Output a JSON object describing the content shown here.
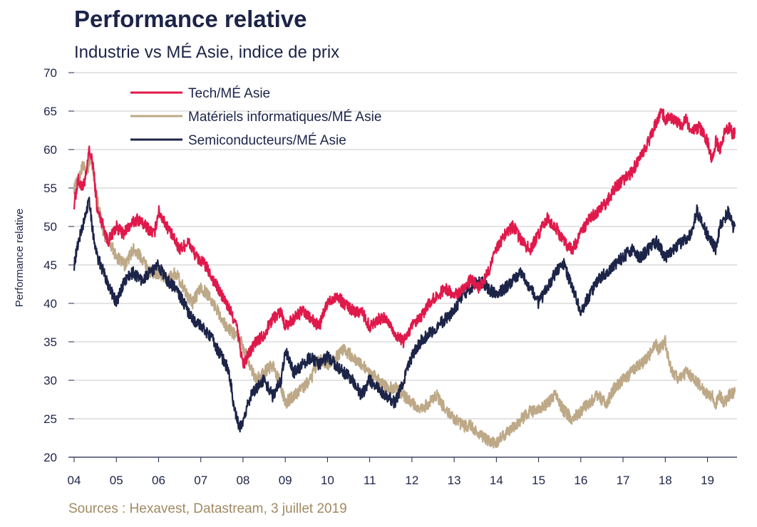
{
  "chart_data": {
    "type": "line",
    "title": "Performance relative",
    "subtitle": "Industrie vs MÉ Asie, indice de prix",
    "ylabel": "Performance relative",
    "xlabel": "",
    "source": "Sources : Hexavest, Datastream, 3 juillet 2019",
    "ylim": [
      20,
      70
    ],
    "yticks": [
      20,
      25,
      30,
      35,
      40,
      45,
      50,
      55,
      60,
      65,
      70
    ],
    "xlim": [
      2004.0,
      2019.7
    ],
    "xticks": [
      {
        "value": 2004,
        "label": "04"
      },
      {
        "value": 2005,
        "label": "05"
      },
      {
        "value": 2006,
        "label": "06"
      },
      {
        "value": 2007,
        "label": "07"
      },
      {
        "value": 2008,
        "label": "08"
      },
      {
        "value": 2009,
        "label": "09"
      },
      {
        "value": 2010,
        "label": "10"
      },
      {
        "value": 2011,
        "label": "11"
      },
      {
        "value": 2012,
        "label": "12"
      },
      {
        "value": 2013,
        "label": "13"
      },
      {
        "value": 2014,
        "label": "14"
      },
      {
        "value": 2015,
        "label": "15"
      },
      {
        "value": 2016,
        "label": "16"
      },
      {
        "value": 2017,
        "label": "17"
      },
      {
        "value": 2018,
        "label": "18"
      },
      {
        "value": 2019,
        "label": "19"
      }
    ],
    "grid": "horizontal",
    "legend_position": "top-left",
    "series": [
      {
        "name": "Tech/MÉ Asie",
        "color": "#e0194b",
        "x": [
          2004.0,
          2004.1,
          2004.2,
          2004.3,
          2004.35,
          2004.45,
          2004.55,
          2004.7,
          2004.8,
          2004.9,
          2005.0,
          2005.15,
          2005.3,
          2005.5,
          2005.7,
          2005.9,
          2006.0,
          2006.1,
          2006.3,
          2006.5,
          2006.7,
          2006.9,
          2007.1,
          2007.3,
          2007.5,
          2007.7,
          2007.85,
          2008.0,
          2008.1,
          2008.3,
          2008.5,
          2008.7,
          2008.9,
          2009.0,
          2009.2,
          2009.4,
          2009.6,
          2009.8,
          2010.0,
          2010.2,
          2010.4,
          2010.6,
          2010.8,
          2011.0,
          2011.2,
          2011.4,
          2011.6,
          2011.8,
          2012.0,
          2012.2,
          2012.4,
          2012.6,
          2012.8,
          2013.0,
          2013.2,
          2013.4,
          2013.6,
          2013.8,
          2014.0,
          2014.2,
          2014.4,
          2014.6,
          2014.8,
          2015.0,
          2015.2,
          2015.4,
          2015.6,
          2015.8,
          2016.0,
          2016.2,
          2016.4,
          2016.6,
          2016.8,
          2017.0,
          2017.2,
          2017.4,
          2017.6,
          2017.75,
          2017.9,
          2018.0,
          2018.2,
          2018.4,
          2018.5,
          2018.6,
          2018.8,
          2019.0,
          2019.1,
          2019.2,
          2019.3,
          2019.4,
          2019.5,
          2019.6,
          2019.65
        ],
        "y": [
          53,
          56,
          55,
          57,
          60,
          58,
          52,
          50,
          48,
          49,
          50,
          49,
          50,
          51,
          50,
          49,
          52,
          51,
          49,
          47,
          48,
          46,
          45,
          43,
          41,
          39,
          37,
          32,
          33,
          35,
          36,
          38,
          39,
          37,
          38,
          39,
          38,
          37,
          40,
          41,
          40,
          39,
          39,
          37,
          38,
          38,
          36,
          35,
          37,
          38,
          40,
          41,
          42,
          41,
          42,
          43,
          42,
          44,
          47,
          49,
          50,
          48,
          47,
          49,
          51,
          50,
          48,
          47,
          49,
          51,
          52,
          53,
          55,
          56,
          57,
          59,
          61,
          63,
          65,
          64,
          64,
          63,
          64,
          62,
          63,
          61,
          59,
          61,
          60,
          62,
          63,
          62,
          62
        ]
      },
      {
        "name": "Matériels informatiques/MÉ Asie",
        "color": "#bda988",
        "x": [
          2004.0,
          2004.1,
          2004.2,
          2004.3,
          2004.4,
          2004.5,
          2004.6,
          2004.7,
          2004.85,
          2005.0,
          2005.2,
          2005.4,
          2005.6,
          2005.8,
          2006.0,
          2006.2,
          2006.4,
          2006.6,
          2006.8,
          2007.0,
          2007.2,
          2007.4,
          2007.6,
          2007.8,
          2007.95,
          2008.1,
          2008.3,
          2008.5,
          2008.7,
          2008.85,
          2009.0,
          2009.2,
          2009.4,
          2009.6,
          2009.8,
          2010.0,
          2010.2,
          2010.4,
          2010.6,
          2010.8,
          2011.0,
          2011.2,
          2011.4,
          2011.6,
          2011.8,
          2012.0,
          2012.2,
          2012.4,
          2012.6,
          2012.8,
          2013.0,
          2013.2,
          2013.4,
          2013.6,
          2013.8,
          2014.0,
          2014.2,
          2014.4,
          2014.6,
          2014.8,
          2015.0,
          2015.2,
          2015.4,
          2015.6,
          2015.8,
          2016.0,
          2016.2,
          2016.4,
          2016.6,
          2016.8,
          2017.0,
          2017.2,
          2017.4,
          2017.6,
          2017.75,
          2017.85,
          2018.0,
          2018.1,
          2018.3,
          2018.5,
          2018.7,
          2018.9,
          2019.0,
          2019.1,
          2019.2,
          2019.3,
          2019.4,
          2019.5,
          2019.65
        ],
        "y": [
          55,
          56,
          58,
          57,
          59,
          55,
          52,
          49,
          48,
          46,
          45,
          47,
          46,
          44,
          44,
          43,
          44,
          42,
          40,
          42,
          41,
          39,
          37,
          36,
          35,
          33,
          30,
          31,
          32,
          30,
          27,
          28,
          29,
          30,
          33,
          32,
          33,
          34,
          33,
          32,
          31,
          30,
          29,
          29,
          28,
          27,
          26,
          27,
          28,
          26,
          25,
          24,
          24,
          23,
          22,
          22,
          23,
          24,
          25,
          26,
          26,
          27,
          28,
          26,
          25,
          26,
          27,
          28,
          27,
          29,
          30,
          31,
          32,
          33,
          35,
          34,
          35,
          32,
          30,
          31,
          30,
          29,
          28,
          28,
          27,
          28,
          27,
          28,
          28.5
        ]
      },
      {
        "name": "Semiconducteurs/MÉ Asie",
        "color": "#1c2448",
        "x": [
          2004.0,
          2004.1,
          2004.2,
          2004.3,
          2004.35,
          2004.45,
          2004.55,
          2004.7,
          2004.85,
          2005.0,
          2005.2,
          2005.4,
          2005.6,
          2005.8,
          2006.0,
          2006.2,
          2006.4,
          2006.6,
          2006.8,
          2007.0,
          2007.2,
          2007.4,
          2007.6,
          2007.7,
          2007.8,
          2007.9,
          2008.0,
          2008.1,
          2008.3,
          2008.5,
          2008.7,
          2008.9,
          2009.0,
          2009.2,
          2009.4,
          2009.6,
          2009.8,
          2010.0,
          2010.2,
          2010.4,
          2010.6,
          2010.8,
          2011.0,
          2011.2,
          2011.4,
          2011.6,
          2011.8,
          2012.0,
          2012.2,
          2012.4,
          2012.6,
          2012.8,
          2013.0,
          2013.2,
          2013.4,
          2013.6,
          2013.8,
          2014.0,
          2014.2,
          2014.4,
          2014.6,
          2014.8,
          2015.0,
          2015.2,
          2015.4,
          2015.6,
          2015.8,
          2016.0,
          2016.2,
          2016.4,
          2016.6,
          2016.8,
          2017.0,
          2017.2,
          2017.4,
          2017.6,
          2017.8,
          2018.0,
          2018.2,
          2018.4,
          2018.6,
          2018.75,
          2018.9,
          2019.0,
          2019.1,
          2019.2,
          2019.3,
          2019.4,
          2019.5,
          2019.6,
          2019.65
        ],
        "y": [
          45,
          48,
          50,
          52,
          54,
          49,
          46,
          44,
          42,
          40,
          43,
          44,
          43,
          44,
          45,
          43,
          42,
          40,
          38,
          37,
          36,
          34,
          32,
          30,
          26,
          24,
          24,
          27,
          29,
          30,
          28,
          30,
          34,
          31,
          32,
          33,
          32,
          33,
          32,
          31,
          30,
          28,
          30,
          29,
          28,
          27,
          30,
          33,
          35,
          36,
          37,
          38,
          39,
          41,
          42,
          43,
          42,
          41,
          42,
          43,
          44,
          42,
          40,
          42,
          44,
          45,
          42,
          39,
          41,
          43,
          44,
          45,
          46,
          47,
          46,
          47,
          48,
          46,
          47,
          48,
          49,
          52,
          50,
          49,
          48,
          47,
          50,
          51,
          52,
          50,
          50
        ]
      }
    ]
  },
  "icons": {
    "legend_marker": "line-swatch"
  }
}
